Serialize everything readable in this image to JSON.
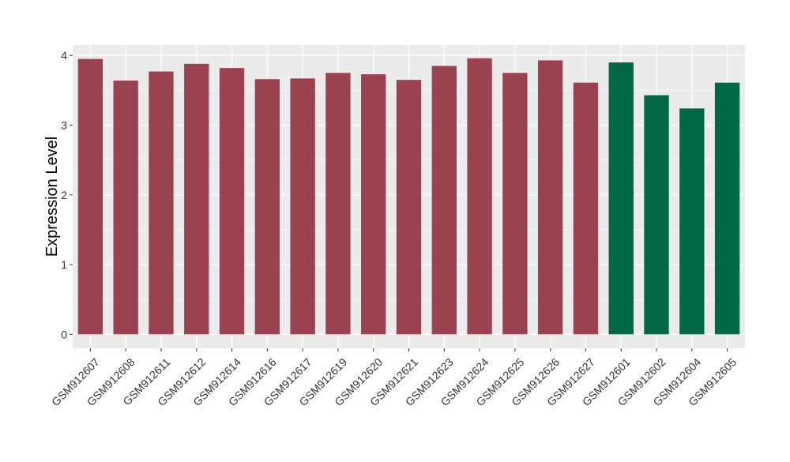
{
  "chart_data": {
    "type": "bar",
    "title": "",
    "xlabel": "",
    "ylabel": "Expression Level",
    "ylim": [
      -0.2,
      4.15
    ],
    "yticks": [
      0,
      1,
      2,
      3,
      4
    ],
    "grid": true,
    "legend": "none",
    "categories": [
      "GSM912607",
      "GSM912608",
      "GSM912611",
      "GSM912612",
      "GSM912614",
      "GSM912616",
      "GSM912617",
      "GSM912619",
      "GSM912620",
      "GSM912621",
      "GSM912623",
      "GSM912624",
      "GSM912625",
      "GSM912626",
      "GSM912627",
      "GSM912601",
      "GSM912602",
      "GSM912604",
      "GSM912605"
    ],
    "values": [
      3.95,
      3.64,
      3.77,
      3.88,
      3.82,
      3.66,
      3.67,
      3.75,
      3.73,
      3.65,
      3.85,
      3.96,
      3.75,
      3.93,
      3.61,
      3.9,
      3.43,
      3.24,
      3.61
    ],
    "groups": [
      "a",
      "a",
      "a",
      "a",
      "a",
      "a",
      "a",
      "a",
      "a",
      "a",
      "a",
      "a",
      "a",
      "a",
      "a",
      "b",
      "b",
      "b",
      "b"
    ],
    "group_colors": {
      "a": "#9A4250",
      "b": "#006844"
    }
  },
  "colors": {
    "panel_background": "#EBEBEB",
    "grid_major": "#FFFFFF",
    "axis_text": "#333333"
  }
}
